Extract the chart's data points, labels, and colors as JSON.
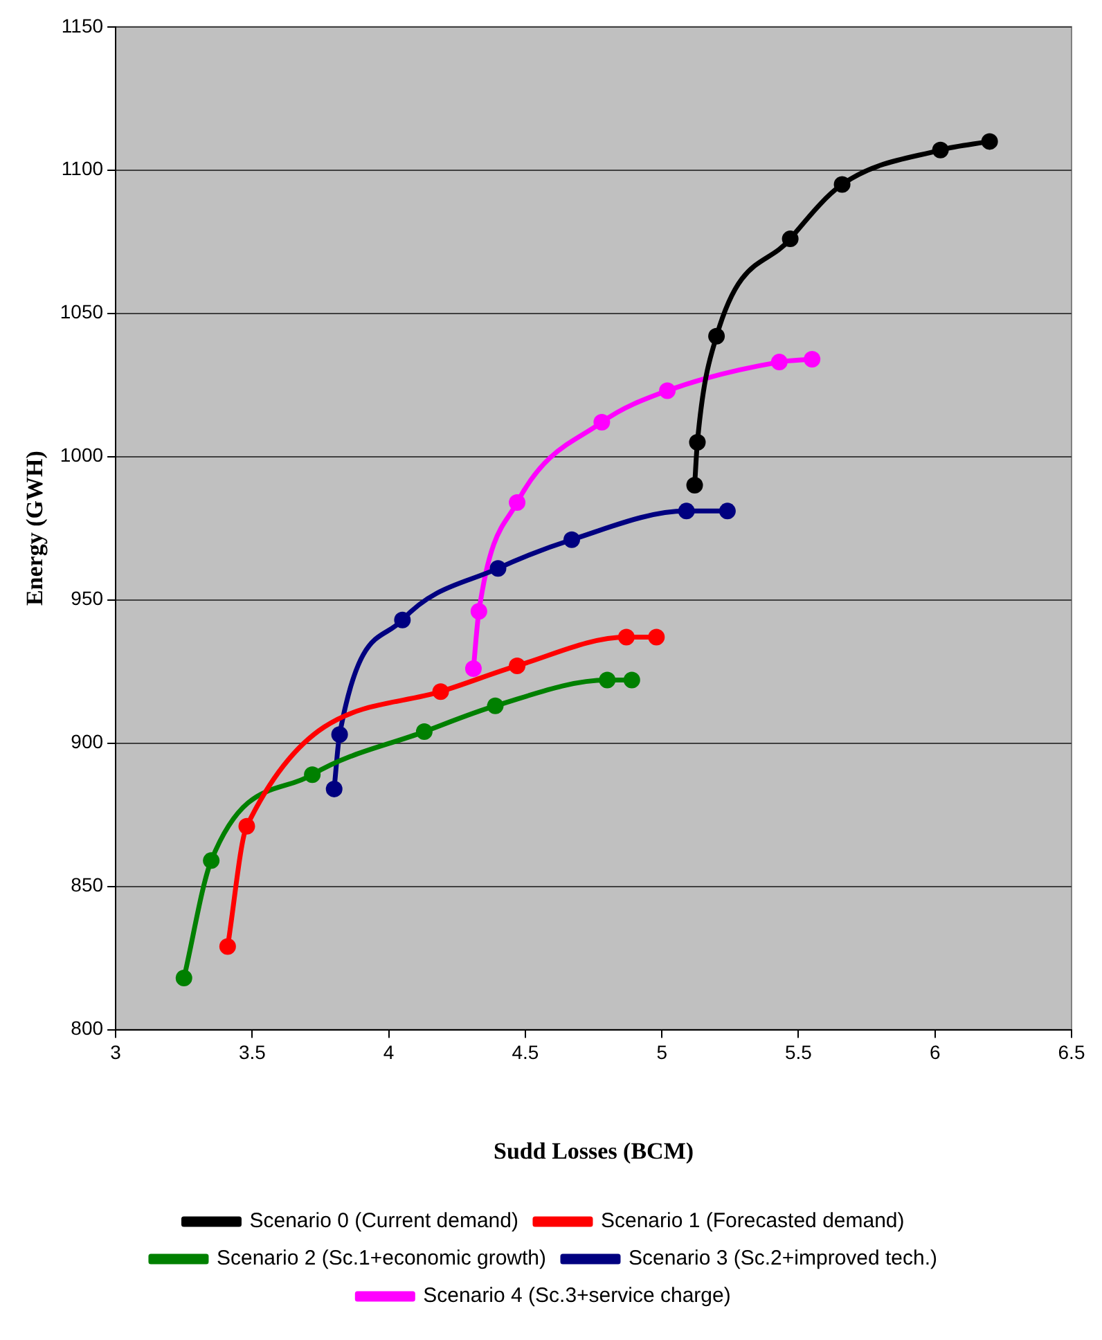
{
  "chart_data": {
    "type": "line",
    "xlabel": "Sudd Losses (BCM)",
    "ylabel": "Energy (GWH)",
    "xlim": [
      3,
      6.5
    ],
    "xticks": [
      3,
      3.5,
      4,
      4.5,
      5,
      5.5,
      6,
      6.5
    ],
    "ylim": [
      800,
      1150
    ],
    "yticks": [
      800,
      850,
      900,
      950,
      1000,
      1050,
      1100,
      1150
    ],
    "grid": "y",
    "legend": "bottom",
    "marker": "circle",
    "line_style": "solid",
    "series": [
      {
        "name": "Scenario 0 (Current demand)",
        "color": "#000000",
        "x": [
          5.12,
          5.13,
          5.2,
          5.47,
          5.66,
          6.02,
          6.2
        ],
        "values": [
          990,
          1005,
          1042,
          1076,
          1095,
          1107,
          1110
        ]
      },
      {
        "name": "Scenario 1 (Forecasted demand)",
        "color": "#ff0000",
        "x": [
          3.41,
          3.48,
          4.19,
          4.47,
          4.87,
          4.98
        ],
        "values": [
          829,
          871,
          918,
          927,
          937,
          937
        ]
      },
      {
        "name": "Scenario 2 (Sc.1+economic growth)",
        "color": "#008000",
        "x": [
          3.25,
          3.35,
          3.72,
          4.13,
          4.39,
          4.8,
          4.89
        ],
        "values": [
          818,
          859,
          889,
          904,
          913,
          922,
          922
        ]
      },
      {
        "name": "Scenario 3 (Sc.2+improved tech.)",
        "color": "#000080",
        "x": [
          3.8,
          3.82,
          4.05,
          4.4,
          4.67,
          5.09,
          5.24
        ],
        "values": [
          884,
          903,
          943,
          961,
          971,
          981,
          981
        ]
      },
      {
        "name": "Scenario 4 (Sc.3+service charge)",
        "color": "#ff00ff",
        "x": [
          4.31,
          4.33,
          4.47,
          4.78,
          5.02,
          5.43,
          5.55
        ],
        "values": [
          926,
          946,
          984,
          1012,
          1023,
          1033,
          1034
        ]
      }
    ]
  }
}
